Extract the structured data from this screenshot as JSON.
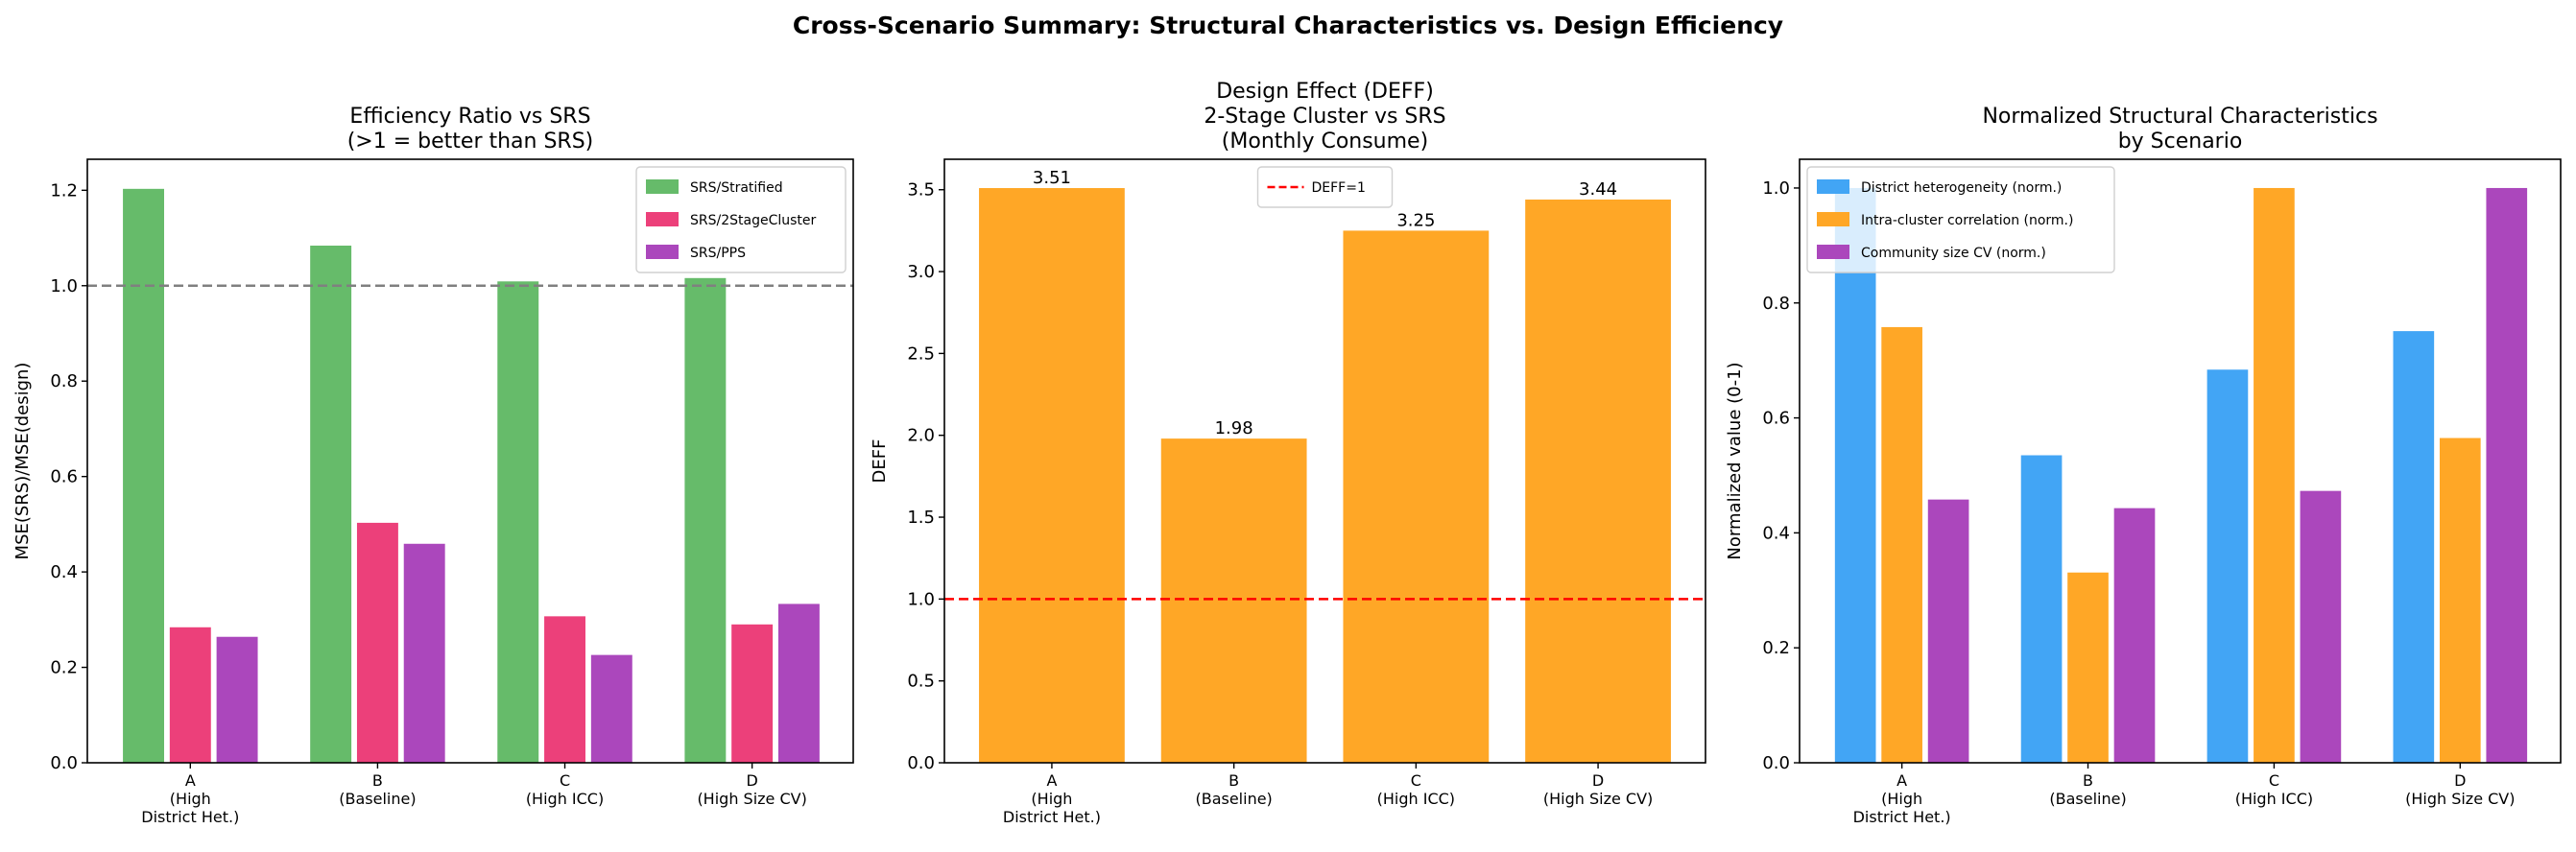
{
  "suptitle": "Cross-Scenario Summary: Structural Characteristics vs. Design Efficiency",
  "chart_data": [
    {
      "type": "bar",
      "title": [
        "Efficiency Ratio vs SRS",
        "(>1 = better than SRS)"
      ],
      "xlabel": "",
      "ylabel": "MSE(SRS)/MSE(design)",
      "categories": [
        [
          "A",
          "(High",
          "District Het.)"
        ],
        [
          "B",
          "(Baseline)"
        ],
        [
          "C",
          "(High ICC)"
        ],
        [
          "D",
          "(High Size CV)"
        ]
      ],
      "ylim": [
        0,
        1.265
      ],
      "yticks": [
        "0.0",
        "0.2",
        "0.4",
        "0.6",
        "0.8",
        "1.0",
        "1.2"
      ],
      "yticks_values": [
        0,
        0.2,
        0.4,
        0.6,
        0.8,
        1.0,
        1.2
      ],
      "reference_line": {
        "y": 1.0,
        "color": "#808080",
        "style": "dashed",
        "label": ""
      },
      "legend_position": "top-right",
      "series": [
        {
          "name": "SRS/Stratified",
          "color": "#66bb6a",
          "values": [
            1.203,
            1.084,
            1.009,
            1.016
          ]
        },
        {
          "name": "SRS/2StageCluster",
          "color": "#ec407a",
          "values": [
            0.284,
            0.503,
            0.307,
            0.29
          ]
        },
        {
          "name": "SRS/PPS",
          "color": "#ab47bc",
          "values": [
            0.264,
            0.459,
            0.226,
            0.333
          ]
        }
      ]
    },
    {
      "type": "bar",
      "title": [
        "Design Effect (DEFF)",
        "2-Stage Cluster vs SRS",
        "(Monthly Consume)"
      ],
      "xlabel": "",
      "ylabel": "DEFF",
      "categories": [
        [
          "A",
          "(High",
          "District Het.)"
        ],
        [
          "B",
          "(Baseline)"
        ],
        [
          "C",
          "(High ICC)"
        ],
        [
          "D",
          "(High Size CV)"
        ]
      ],
      "ylim": [
        0,
        3.686
      ],
      "yticks": [
        "0.0",
        "0.5",
        "1.0",
        "1.5",
        "2.0",
        "2.5",
        "3.0",
        "3.5"
      ],
      "yticks_values": [
        0,
        0.5,
        1.0,
        1.5,
        2.0,
        2.5,
        3.0,
        3.5
      ],
      "reference_line": {
        "y": 1.0,
        "color": "#ff0000",
        "style": "dashed",
        "label": "DEFF=1"
      },
      "legend_position": "top-center",
      "series": [
        {
          "name": "DEFF",
          "color": "#ffa726",
          "values": [
            3.51,
            1.98,
            3.25,
            3.44
          ],
          "data_labels": [
            "3.51",
            "1.98",
            "3.25",
            "3.44"
          ]
        }
      ]
    },
    {
      "type": "bar",
      "title": [
        "Normalized Structural Characteristics",
        "by Scenario"
      ],
      "xlabel": "",
      "ylabel": "Normalized value (0-1)",
      "categories": [
        [
          "A",
          "(High",
          "District Het.)"
        ],
        [
          "B",
          "(Baseline)"
        ],
        [
          "C",
          "(High ICC)"
        ],
        [
          "D",
          "(High Size CV)"
        ]
      ],
      "ylim": [
        0,
        1.05
      ],
      "yticks": [
        "0.0",
        "0.2",
        "0.4",
        "0.6",
        "0.8",
        "1.0"
      ],
      "yticks_values": [
        0,
        0.2,
        0.4,
        0.6,
        0.8,
        1.0
      ],
      "legend_position": "top-left",
      "series": [
        {
          "name": "District heterogeneity (norm.)",
          "color": "#42a5f5",
          "values": [
            1.0,
            0.535,
            0.684,
            0.751
          ]
        },
        {
          "name": "Intra-cluster correlation (norm.)",
          "color": "#ffa726",
          "values": [
            0.758,
            0.331,
            1.0,
            0.565
          ]
        },
        {
          "name": "Community size CV (norm.)",
          "color": "#ab47bc",
          "values": [
            0.458,
            0.443,
            0.473,
            1.0
          ]
        }
      ]
    }
  ]
}
